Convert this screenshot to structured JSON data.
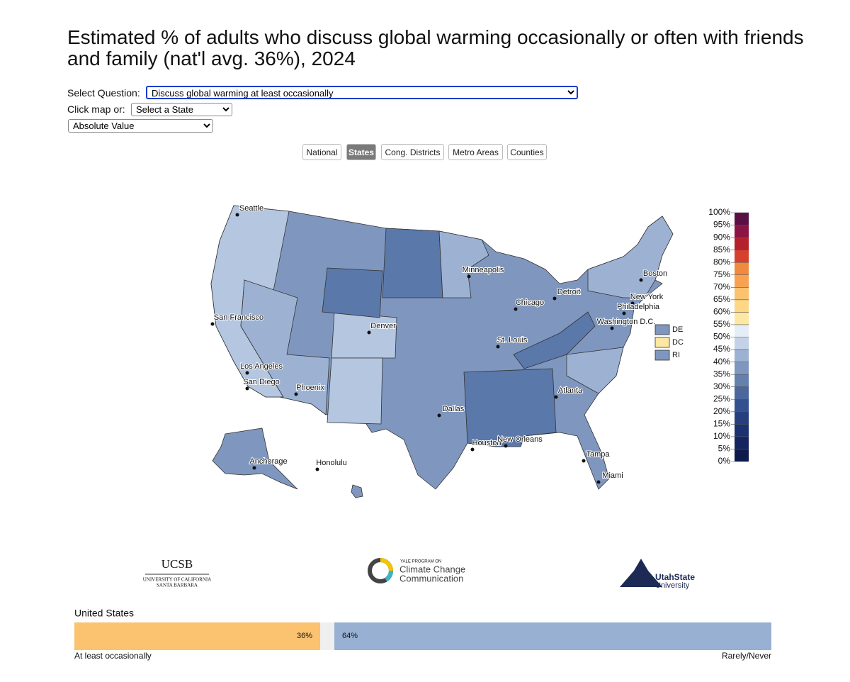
{
  "title": "Estimated % of adults who discuss global warming occasionally or often with friends and family (nat'l avg. 36%), 2024",
  "controls": {
    "question_label": "Select Question:",
    "question": "Discuss global warming at least occasionally",
    "click_label": "Click map or:",
    "state_select": "Select a State",
    "mode_select": "Absolute Value"
  },
  "tabs": [
    "National",
    "States",
    "Cong. Districts",
    "Metro Areas",
    "Counties"
  ],
  "active_tab": 1,
  "map": {
    "cities": [
      "Seattle",
      "San Francisco",
      "Los Angeles",
      "San Diego",
      "Phoenix",
      "Denver",
      "Dallas",
      "Houston",
      "Minneapolis",
      "St. Louis",
      "Chicago",
      "Detroit",
      "Atlanta",
      "New Orleans",
      "Tampa",
      "Miami",
      "New York",
      "Philadelphia",
      "Washington D.C.",
      "Boston",
      "Anchorage",
      "Honolulu"
    ],
    "small_states": [
      {
        "name": "DE",
        "color": "#7f97bf"
      },
      {
        "name": "DC",
        "color": "#fde8a3"
      },
      {
        "name": "RI",
        "color": "#7f97bf"
      }
    ]
  },
  "legend": {
    "ticks": [
      {
        "value": 0,
        "label": "0%"
      },
      {
        "value": 5,
        "label": "5%"
      },
      {
        "value": 10,
        "label": "10%"
      },
      {
        "value": 15,
        "label": "15%"
      },
      {
        "value": 20,
        "label": "20%"
      },
      {
        "value": 25,
        "label": "25%"
      },
      {
        "value": 30,
        "label": "30%"
      },
      {
        "value": 35,
        "label": "35%"
      },
      {
        "value": 40,
        "label": "40%"
      },
      {
        "value": 45,
        "label": "45%"
      },
      {
        "value": 50,
        "label": "50%"
      },
      {
        "value": 55,
        "label": "55%"
      },
      {
        "value": 60,
        "label": "60%"
      },
      {
        "value": 65,
        "label": "65%"
      },
      {
        "value": 70,
        "label": "70%"
      },
      {
        "value": 75,
        "label": "75%"
      },
      {
        "value": 80,
        "label": "80%"
      },
      {
        "value": 85,
        "label": "85%"
      },
      {
        "value": 90,
        "label": "90%"
      },
      {
        "value": 95,
        "label": "95%"
      },
      {
        "value": 100,
        "label": "100%"
      }
    ],
    "colors": [
      "#0d1b4c",
      "#14245e",
      "#1c3170",
      "#26407f",
      "#34518e",
      "#4b679c",
      "#6480ad",
      "#7f97bf",
      "#9db2d3",
      "#c3d2e8",
      "#e5edf6",
      "#fde8a3",
      "#fdd784",
      "#fbc270",
      "#f7a253",
      "#ef8a3e",
      "#d8402e",
      "#b5202d",
      "#8a1444",
      "#5a0f45"
    ],
    "range": [
      0,
      100
    ]
  },
  "logos": {
    "ucsb": "UCSB",
    "ucsb_sub1": "UNIVERSITY OF CALIFORNIA",
    "ucsb_sub2": "SANTA BARBARA",
    "yale_small": "YALE PROGRAM ON",
    "yale_line1": "Climate Change",
    "yale_line2": "Communication",
    "usu_line1": "UtahState",
    "usu_line2": "University"
  },
  "summary": {
    "type": "bar",
    "title": "United States",
    "xlim": [
      0,
      100
    ],
    "series": [
      {
        "name": "At least occasionally",
        "values": [
          36
        ],
        "value_labels": [
          "36%"
        ],
        "color": "#fbc270"
      },
      {
        "name": "Rarely/Never",
        "values": [
          64
        ],
        "value_labels": [
          "64%"
        ],
        "color": "#98b0d2"
      }
    ]
  }
}
